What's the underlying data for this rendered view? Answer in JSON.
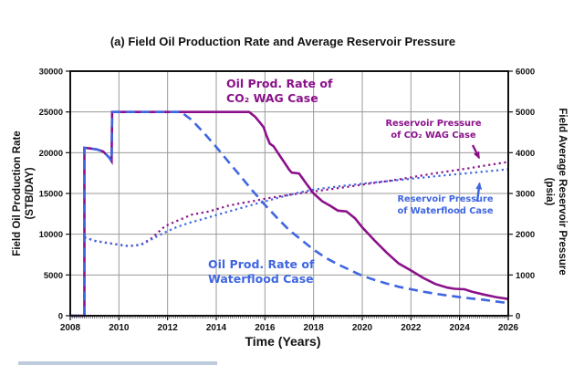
{
  "title": "(a) Field Oil Production Rate and Average Reservoir Pressure",
  "colors": {
    "wag": "#8B118B",
    "waterflood": "#3F66E0",
    "grid": "#9a9a9a",
    "frame": "#111111",
    "tick_text": "#111111"
  },
  "chart_data": {
    "type": "line",
    "title": "(a) Field Oil Production Rate and Average Reservoir Pressure",
    "xlabel": "Time (Years)",
    "ylabel_left": "Field Oil Production Rate",
    "ylabel_left_units": "(STB/DAY)",
    "ylabel_right": "Field Average Reservoir Pressure",
    "ylabel_right_units": "(psia)",
    "x_range": [
      2008,
      2026
    ],
    "x_ticks": [
      2008,
      2010,
      2012,
      2014,
      2016,
      2018,
      2020,
      2022,
      2024,
      2026
    ],
    "x_minor_tick_step_years": 0.0833,
    "y_left_range": [
      0,
      30000
    ],
    "y_left_ticks": [
      0,
      5000,
      10000,
      15000,
      20000,
      25000,
      30000
    ],
    "y_right_range": [
      0,
      6000
    ],
    "y_right_ticks": [
      0,
      1000,
      2000,
      3000,
      4000,
      5000,
      6000
    ],
    "grid": true,
    "legend_position": "annotations-inside-plot",
    "series": [
      {
        "name": "Oil Prod. Rate of CO₂ WAG Case",
        "axis": "left",
        "style": "solid",
        "color": "#8B118B",
        "points": [
          [
            2008.0,
            0
          ],
          [
            2008.58,
            0
          ],
          [
            2008.58,
            20600
          ],
          [
            2008.75,
            20550
          ],
          [
            2009.1,
            20400
          ],
          [
            2009.35,
            20150
          ],
          [
            2009.6,
            19400
          ],
          [
            2009.7,
            18950
          ],
          [
            2009.72,
            25000
          ],
          [
            2015.35,
            25000
          ],
          [
            2015.6,
            24400
          ],
          [
            2015.85,
            23500
          ],
          [
            2015.95,
            23100
          ],
          [
            2016.05,
            22200
          ],
          [
            2016.2,
            21100
          ],
          [
            2016.35,
            20800
          ],
          [
            2016.55,
            19900
          ],
          [
            2016.8,
            18800
          ],
          [
            2017.0,
            17900
          ],
          [
            2017.1,
            17550
          ],
          [
            2017.4,
            17450
          ],
          [
            2017.7,
            16200
          ],
          [
            2018.0,
            15000
          ],
          [
            2018.35,
            14050
          ],
          [
            2018.7,
            13450
          ],
          [
            2019.0,
            12900
          ],
          [
            2019.35,
            12800
          ],
          [
            2019.7,
            11950
          ],
          [
            2020.0,
            10850
          ],
          [
            2020.5,
            9250
          ],
          [
            2021.0,
            7750
          ],
          [
            2021.5,
            6400
          ],
          [
            2022.0,
            5550
          ],
          [
            2022.5,
            4650
          ],
          [
            2023.0,
            3900
          ],
          [
            2023.5,
            3450
          ],
          [
            2023.8,
            3300
          ],
          [
            2024.2,
            3250
          ],
          [
            2024.5,
            2950
          ],
          [
            2025.0,
            2600
          ],
          [
            2025.5,
            2280
          ],
          [
            2026.0,
            2050
          ]
        ]
      },
      {
        "name": "Oil Prod. Rate of Waterflood Case",
        "axis": "left",
        "style": "dashed",
        "color": "#3F66E0",
        "points": [
          [
            2008.0,
            0
          ],
          [
            2008.58,
            0
          ],
          [
            2008.58,
            20600
          ],
          [
            2008.75,
            20550
          ],
          [
            2009.1,
            20400
          ],
          [
            2009.35,
            20150
          ],
          [
            2009.6,
            19400
          ],
          [
            2009.7,
            18950
          ],
          [
            2009.72,
            25000
          ],
          [
            2012.55,
            25000
          ],
          [
            2013.0,
            24000
          ],
          [
            2013.5,
            22400
          ],
          [
            2014.0,
            20700
          ],
          [
            2014.5,
            18900
          ],
          [
            2015.0,
            17100
          ],
          [
            2015.5,
            15300
          ],
          [
            2016.0,
            13600
          ],
          [
            2016.5,
            12000
          ],
          [
            2017.0,
            10500
          ],
          [
            2017.5,
            9300
          ],
          [
            2018.0,
            8100
          ],
          [
            2018.5,
            7100
          ],
          [
            2019.0,
            6300
          ],
          [
            2019.5,
            5600
          ],
          [
            2020.0,
            4900
          ],
          [
            2020.5,
            4400
          ],
          [
            2021.0,
            3950
          ],
          [
            2021.5,
            3550
          ],
          [
            2022.0,
            3250
          ],
          [
            2022.5,
            2950
          ],
          [
            2023.0,
            2700
          ],
          [
            2023.5,
            2480
          ],
          [
            2024.0,
            2280
          ],
          [
            2024.5,
            2100
          ],
          [
            2025.0,
            1950
          ],
          [
            2025.5,
            1750
          ],
          [
            2026.0,
            1550
          ]
        ]
      },
      {
        "name": "Reservoir Pressure of CO₂ WAG Case",
        "axis": "right",
        "style": "dotted",
        "color": "#8B118B",
        "points": [
          [
            2008.58,
            1925
          ],
          [
            2009.0,
            1840
          ],
          [
            2009.5,
            1790
          ],
          [
            2010.0,
            1745
          ],
          [
            2010.4,
            1710
          ],
          [
            2010.9,
            1745
          ],
          [
            2011.3,
            1880
          ],
          [
            2011.9,
            2200
          ],
          [
            2012.4,
            2330
          ],
          [
            2013.0,
            2480
          ],
          [
            2013.7,
            2560
          ],
          [
            2014.5,
            2700
          ],
          [
            2015.0,
            2760
          ],
          [
            2015.5,
            2810
          ],
          [
            2016.0,
            2870
          ],
          [
            2016.5,
            2920
          ],
          [
            2017.0,
            2965
          ],
          [
            2017.5,
            3010
          ],
          [
            2018.0,
            3050
          ],
          [
            2018.5,
            3090
          ],
          [
            2019.0,
            3130
          ],
          [
            2019.5,
            3170
          ],
          [
            2020.0,
            3215
          ],
          [
            2020.5,
            3260
          ],
          [
            2021.0,
            3300
          ],
          [
            2021.5,
            3345
          ],
          [
            2022.0,
            3395
          ],
          [
            2022.5,
            3445
          ],
          [
            2023.0,
            3495
          ],
          [
            2023.5,
            3540
          ],
          [
            2024.0,
            3585
          ],
          [
            2024.5,
            3630
          ],
          [
            2025.0,
            3680
          ],
          [
            2025.5,
            3725
          ],
          [
            2026.0,
            3775
          ]
        ]
      },
      {
        "name": "Reservoir Pressure of Waterflood Case",
        "axis": "right",
        "style": "dotted",
        "color": "#3F66E0",
        "points": [
          [
            2008.58,
            1925
          ],
          [
            2009.0,
            1835
          ],
          [
            2009.5,
            1785
          ],
          [
            2010.0,
            1740
          ],
          [
            2010.4,
            1705
          ],
          [
            2010.9,
            1735
          ],
          [
            2011.3,
            1860
          ],
          [
            2011.8,
            2020
          ],
          [
            2012.4,
            2180
          ],
          [
            2013.0,
            2300
          ],
          [
            2013.5,
            2380
          ],
          [
            2014.0,
            2470
          ],
          [
            2014.5,
            2555
          ],
          [
            2015.0,
            2640
          ],
          [
            2015.5,
            2725
          ],
          [
            2016.0,
            2805
          ],
          [
            2016.5,
            2885
          ],
          [
            2017.0,
            2965
          ],
          [
            2017.5,
            3035
          ],
          [
            2018.0,
            3095
          ],
          [
            2018.5,
            3135
          ],
          [
            2019.0,
            3170
          ],
          [
            2019.5,
            3205
          ],
          [
            2020.0,
            3240
          ],
          [
            2020.5,
            3270
          ],
          [
            2021.0,
            3300
          ],
          [
            2021.5,
            3330
          ],
          [
            2022.0,
            3360
          ],
          [
            2022.5,
            3390
          ],
          [
            2023.0,
            3420
          ],
          [
            2023.5,
            3450
          ],
          [
            2024.0,
            3480
          ],
          [
            2024.5,
            3505
          ],
          [
            2025.0,
            3535
          ],
          [
            2025.5,
            3565
          ],
          [
            2026.0,
            3595
          ]
        ]
      }
    ],
    "annotations": [
      {
        "id": "wag-rate",
        "color": "#8B118B",
        "line1": "Oil Prod. Rate of",
        "line2": "CO₂ WAG Case"
      },
      {
        "id": "wag-pres",
        "color": "#8B118B",
        "line1": "Reservoir Pressure",
        "line2": "of CO₂ WAG Case"
      },
      {
        "id": "wf-pres",
        "color": "#3F66E0",
        "line1": "Reservoir Pressure",
        "line2": "of Waterflood Case"
      },
      {
        "id": "wf-rate",
        "color": "#3F66E0",
        "line1": "Oil Prod. Rate of",
        "line2": "Waterflood Case"
      }
    ]
  }
}
